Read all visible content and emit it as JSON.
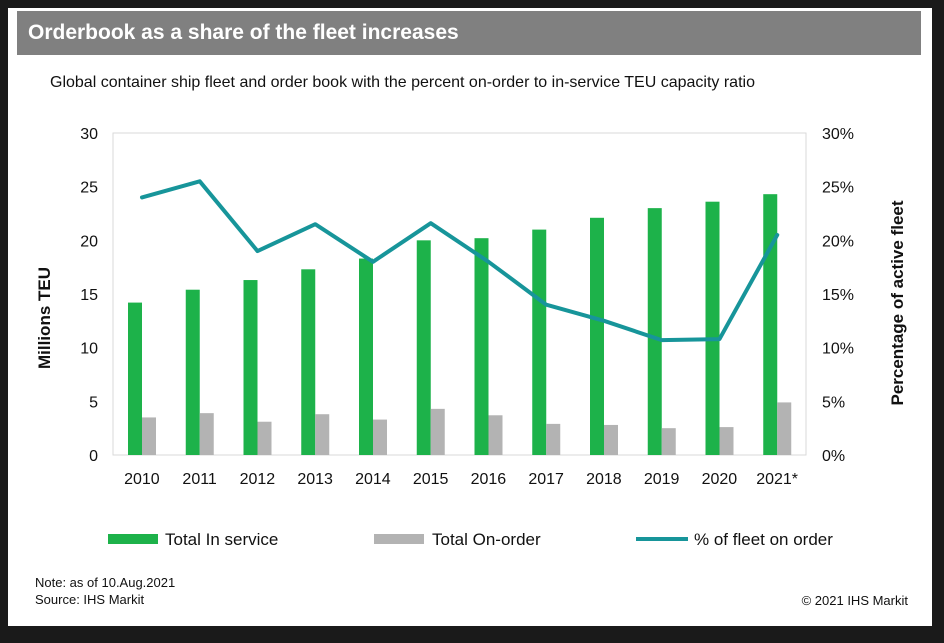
{
  "header": {
    "title": "Orderbook as a share of the fleet increases",
    "subtitle": "Global container ship fleet and order book with the percent on-order to in-service TEU capacity ratio"
  },
  "footer": {
    "note": "Note: as of 10.Aug.2021",
    "source": "Source: IHS Markit",
    "copyright": "© 2021 IHS Markit"
  },
  "colors": {
    "in_service": "#1db24a",
    "on_order": "#b3b3b3",
    "pct_line": "#17959a"
  },
  "chart_data": {
    "type": "bar",
    "title": "Orderbook as a share of the fleet increases",
    "categories": [
      "2010",
      "2011",
      "2012",
      "2013",
      "2014",
      "2015",
      "2016",
      "2017",
      "2018",
      "2019",
      "2020",
      "2021*"
    ],
    "ylabel": "Millions TEU",
    "y2label": "Percentage of active fleet",
    "ylim": [
      0,
      30
    ],
    "y2lim": [
      0,
      30
    ],
    "yticks": [
      "0",
      "5",
      "10",
      "15",
      "20",
      "25",
      "30"
    ],
    "y2ticks": [
      "0%",
      "5%",
      "10%",
      "15%",
      "20%",
      "25%",
      "30%"
    ],
    "series": [
      {
        "name": "Total In service",
        "type": "bar",
        "axis": "left",
        "values": [
          14.2,
          15.4,
          16.3,
          17.3,
          18.3,
          20.0,
          20.2,
          21.0,
          22.1,
          23.0,
          23.6,
          24.3
        ]
      },
      {
        "name": "Total On-order",
        "type": "bar",
        "axis": "left",
        "values": [
          3.5,
          3.9,
          3.1,
          3.8,
          3.3,
          4.3,
          3.7,
          2.9,
          2.8,
          2.5,
          2.6,
          4.9
        ]
      },
      {
        "name": "% of fleet on order",
        "type": "line",
        "axis": "right",
        "values": [
          24.0,
          25.5,
          19.0,
          21.5,
          18.0,
          21.6,
          18.0,
          14.0,
          12.5,
          10.7,
          10.8,
          20.5
        ]
      }
    ],
    "legend_position": "bottom"
  }
}
